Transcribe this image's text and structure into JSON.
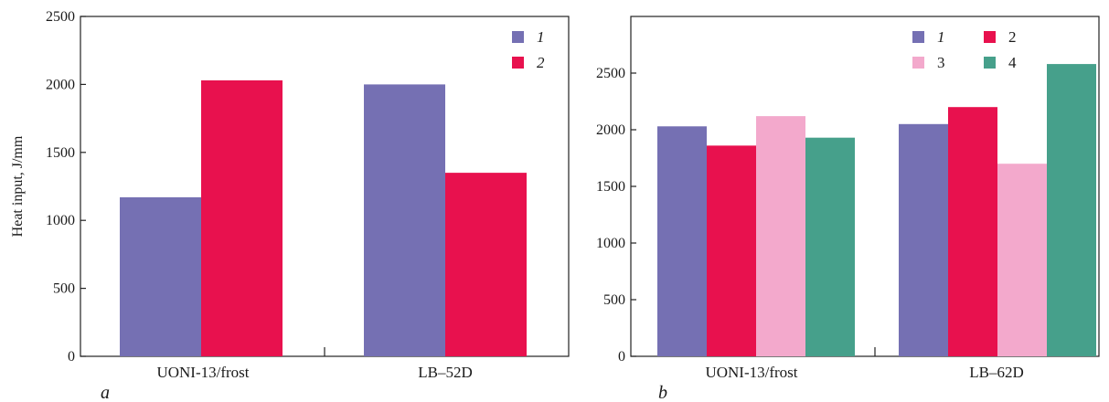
{
  "chart_data": [
    {
      "type": "bar",
      "panel_label": "a",
      "ylabel": "Heat input, J/mm",
      "xlabel": "",
      "ylim": [
        0,
        2500
      ],
      "yticks": [
        0,
        500,
        1000,
        1500,
        2000,
        2500
      ],
      "categories": [
        "UONI-13/frost",
        "LB–52D"
      ],
      "series": [
        {
          "name": "1",
          "italic": true,
          "color": "#7570b3",
          "values": [
            1170,
            2000
          ]
        },
        {
          "name": "2",
          "italic": true,
          "color": "#e8114e",
          "values": [
            2030,
            1350
          ]
        }
      ],
      "legend_position": "top-right",
      "grid": false
    },
    {
      "type": "bar",
      "panel_label": "b",
      "ylabel": "",
      "xlabel": "",
      "ylim": [
        0,
        3000
      ],
      "yticks": [
        0,
        500,
        1000,
        1500,
        2000,
        2500
      ],
      "categories": [
        "UONI-13/frost",
        "LB–62D"
      ],
      "series": [
        {
          "name": "1",
          "italic": true,
          "color": "#7570b3",
          "values": [
            2030,
            2050
          ]
        },
        {
          "name": "2",
          "italic": false,
          "color": "#e8114e",
          "values": [
            1860,
            2200
          ]
        },
        {
          "name": "3",
          "italic": false,
          "color": "#f3a9cc",
          "values": [
            2120,
            1700
          ]
        },
        {
          "name": "4",
          "italic": false,
          "color": "#46a08b",
          "values": [
            1930,
            2580
          ]
        }
      ],
      "legend_position": "top-right",
      "grid": false
    }
  ]
}
